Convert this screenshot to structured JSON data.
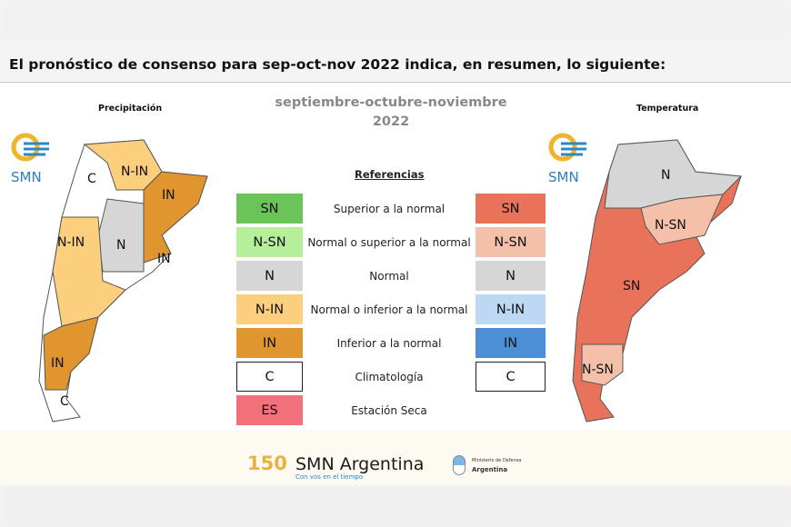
{
  "header": {
    "title": "El pronóstico de consenso para  sep-oct-nov 2022 indica, en resumen, lo siguiente:"
  },
  "period": {
    "line1": "septiembre-octubre-noviembre",
    "line2": "2022"
  },
  "maps": {
    "left": {
      "label": "Precipitación",
      "logo": "SMN",
      "regions": [
        "C",
        "N-IN",
        "IN",
        "N-IN",
        "N",
        "IN",
        "IN",
        "C"
      ]
    },
    "right": {
      "label": "Temperatura",
      "logo": "SMN",
      "regions": [
        "N",
        "N-SN",
        "SN",
        "N-SN"
      ]
    }
  },
  "legend": {
    "title": "Referencias",
    "rows": [
      {
        "code": "SN",
        "desc": "Superior a la normal",
        "precip_color": "#6cc35a",
        "temp_code": "SN",
        "temp_color": "#e8735a"
      },
      {
        "code": "N-SN",
        "desc": "Normal o superior a la normal",
        "precip_color": "#b6ef9a",
        "temp_code": "N-SN",
        "temp_color": "#f5c0aa"
      },
      {
        "code": "N",
        "desc": "Normal",
        "precip_color": "#d6d6d6",
        "temp_code": "N",
        "temp_color": "#d6d6d6"
      },
      {
        "code": "N-IN",
        "desc": "Normal o inferior a la normal",
        "precip_color": "#fbcf7e",
        "temp_code": "N-IN",
        "temp_color": "#bcd8f2"
      },
      {
        "code": "IN",
        "desc": "Inferior a la normal",
        "precip_color": "#e0952e",
        "temp_code": "IN",
        "temp_color": "#4d8fd6"
      },
      {
        "code": "C",
        "desc": "Climatología",
        "precip_color": "#ffffff",
        "temp_code": "C",
        "temp_color": "#ffffff"
      },
      {
        "code": "ES",
        "desc": "Estación Seca",
        "precip_color": "#f2707a"
      }
    ]
  },
  "footer": {
    "anniversary": "150",
    "brand": "SMN Argentina",
    "tagline": "Con vos en el tiempo",
    "ministry": "Ministerio de Defensa",
    "country": "Argentina"
  }
}
